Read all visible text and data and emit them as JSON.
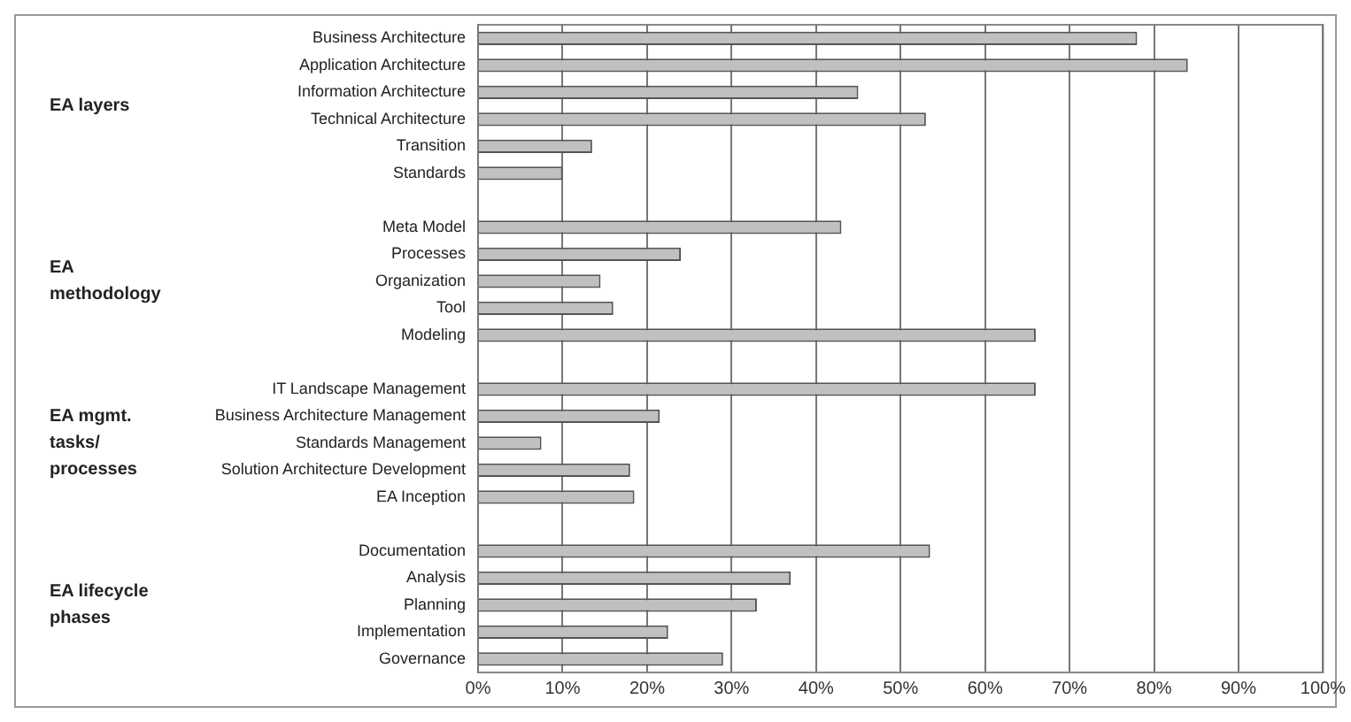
{
  "chart_data": {
    "type": "bar",
    "orientation": "horizontal",
    "categories": [
      "Business Architecture",
      "Application Architecture",
      "Information Architecture",
      "Technical Architecture",
      "Transition",
      "Standards",
      null,
      "Meta Model",
      "Processes",
      "Organization",
      "Tool",
      "Modeling",
      null,
      "IT Landscape Management",
      "Business Architecture Management",
      "Standards Management",
      "Solution Architecture Development",
      "EA Inception",
      null,
      "Documentation",
      "Analysis",
      "Planning",
      "Implementation",
      "Governance"
    ],
    "values": [
      78,
      84,
      45,
      53,
      13.5,
      10,
      null,
      43,
      24,
      14.5,
      16,
      66,
      null,
      66,
      21.5,
      7.5,
      18,
      18.5,
      null,
      53.5,
      37,
      33,
      22.5,
      29
    ],
    "color": "#c0c0c0",
    "xlim": [
      0,
      100
    ],
    "xticks": [
      {
        "value": 0,
        "label": "0%"
      },
      {
        "value": 10,
        "label": "10%"
      },
      {
        "value": 20,
        "label": "20%"
      },
      {
        "value": 30,
        "label": "30%"
      },
      {
        "value": 40,
        "label": "40%"
      },
      {
        "value": 50,
        "label": "50%"
      },
      {
        "value": 60,
        "label": "60%"
      },
      {
        "value": 70,
        "label": "70%"
      },
      {
        "value": 80,
        "label": "80%"
      },
      {
        "value": 90,
        "label": "90%"
      },
      {
        "value": 100,
        "label": "100%"
      }
    ],
    "grid": "x",
    "annotations": [
      "EA layers",
      "EA methodology",
      "EA mgmt. tasks/ processes",
      "EA lifecycle phases"
    ]
  }
}
